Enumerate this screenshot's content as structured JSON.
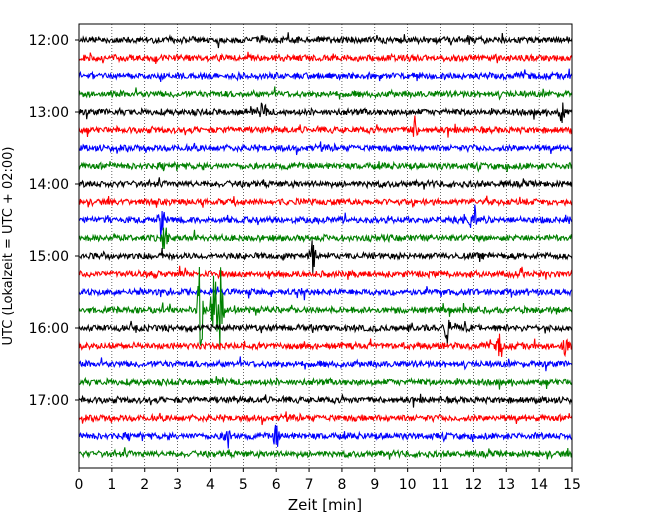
{
  "chart_data": {
    "type": "line",
    "title": "",
    "xlabel": "Zeit  [min]",
    "ylabel": "UTC (Lokalzeit = UTC + 02:00)",
    "xlim": [
      0,
      15
    ],
    "x_ticks": [
      "0",
      "1",
      "2",
      "3",
      "4",
      "5",
      "6",
      "7",
      "8",
      "9",
      "10",
      "11",
      "12",
      "13",
      "14",
      "15"
    ],
    "y_ticks": [
      "12:00",
      "13:00",
      "14:00",
      "15:00",
      "16:00",
      "17:00"
    ],
    "grid": "vertical dotted at each minute",
    "trace_colors": [
      "#000000",
      "#ff0000",
      "#0000ff",
      "#008000"
    ],
    "trace_start_times": [
      "12:00",
      "12:15",
      "12:30",
      "12:45",
      "13:00",
      "13:15",
      "13:30",
      "13:45",
      "14:00",
      "14:15",
      "14:30",
      "14:45",
      "15:00",
      "15:15",
      "15:30",
      "15:45",
      "16:00",
      "16:15",
      "16:30",
      "16:45",
      "17:00",
      "17:15",
      "17:30",
      "17:45"
    ],
    "events": [
      {
        "trace": "14:30",
        "minute": 2.5,
        "amplitude": 1.1
      },
      {
        "trace": "14:30",
        "minute": 12.0,
        "amplitude": 1.0
      },
      {
        "trace": "14:45",
        "minute": 2.6,
        "amplitude": 0.9
      },
      {
        "trace": "15:00",
        "minute": 7.1,
        "amplitude": 0.9
      },
      {
        "trace": "15:45",
        "minute": 3.7,
        "amplitude": 3.6
      },
      {
        "trace": "15:45",
        "minute": 4.1,
        "amplitude": 3.4
      },
      {
        "trace": "15:45",
        "minute": 4.3,
        "amplitude": 2.6
      },
      {
        "trace": "16:00",
        "minute": 11.2,
        "amplitude": 1.0
      },
      {
        "trace": "16:15",
        "minute": 12.8,
        "amplitude": 0.8
      },
      {
        "trace": "16:15",
        "minute": 14.8,
        "amplitude": 0.8
      },
      {
        "trace": "13:00",
        "minute": 5.6,
        "amplitude": 0.8
      },
      {
        "trace": "13:00",
        "minute": 14.7,
        "amplitude": 1.0
      },
      {
        "trace": "13:15",
        "minute": 10.2,
        "amplitude": 0.8
      },
      {
        "trace": "17:30",
        "minute": 4.5,
        "amplitude": 0.9
      },
      {
        "trace": "17:30",
        "minute": 6.0,
        "amplitude": 0.7
      }
    ]
  }
}
